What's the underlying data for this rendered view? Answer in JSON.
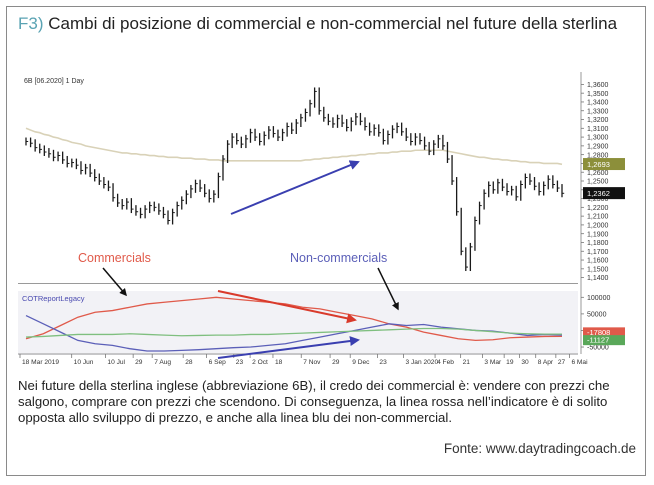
{
  "figure": {
    "label": "F3)",
    "title": "Cambi di posizione di commercial e non-commercial nel future della sterlina",
    "caption": "Nei future della sterlina inglese (abbreviazione 6B), il credo dei commercial è: vendere con prezzi che salgono, comprare con prezzi che scendono. Di conseguenza, la linea rossa nell’indicatore è di solito opposta allo sviluppo di prezzo, e anche alla linea blu dei non-commercial.",
    "source": "Fonte: www.daytradingcoach.de"
  },
  "colors": {
    "price": "#1a1a1a",
    "moving_average": "#d9d2b8",
    "commercials": "#e05a4a",
    "non_commercials": "#5b5fb8",
    "green_line": "#7fbf7f",
    "arrow_blue": "#3a3fb0",
    "arrow_red": "#d93a2b",
    "ma_badge": "#8c8f3a",
    "price_badge": "#111111",
    "net_badge_red": "#e05a4a",
    "net_badge_green": "#5aa85a"
  },
  "chart_data": {
    "type": "line",
    "instrument_label": "6B [06.2020] 1 Day",
    "indicator_label": "COTReportLegacy",
    "annotations": {
      "commercials": "Commercials",
      "non_commercials": "Non-commercials"
    },
    "x_tick_labels": [
      "18 Mar 2019",
      "10 Jun",
      "10 Jul",
      "29",
      "7 Aug",
      "28",
      "6 Sep",
      "23",
      "2 Oct",
      "18",
      "7 Nov",
      "29",
      "9 Dec",
      "23",
      "3 Jan 2020",
      "4 Feb",
      "21",
      "3 Mar",
      "19",
      "30",
      "8 Apr",
      "27",
      "6 Mai"
    ],
    "price_panel": {
      "y_ticks": [
        "1,3600",
        "1,3500",
        "1,3400",
        "1,3300",
        "1,3200",
        "1,3100",
        "1,3000",
        "1,2900",
        "1,2800",
        "1,2700",
        "1,2600",
        "1,2500",
        "1,2400",
        "1,2300",
        "1,2200",
        "1,2100",
        "1,2000",
        "1,1900",
        "1,1800",
        "1,1700",
        "1,1600",
        "1,1500",
        "1,1400"
      ],
      "ylim": [
        1.135,
        1.365
      ],
      "ma_badge_label": "1,2693",
      "price_badge_label": "1,2362",
      "price": [
        1.295,
        1.293,
        1.288,
        1.286,
        1.283,
        1.281,
        1.277,
        1.279,
        1.274,
        1.27,
        1.271,
        1.268,
        1.262,
        1.265,
        1.259,
        1.254,
        1.25,
        1.246,
        1.243,
        1.231,
        1.225,
        1.222,
        1.226,
        1.218,
        1.215,
        1.212,
        1.218,
        1.222,
        1.22,
        1.216,
        1.212,
        1.205,
        1.214,
        1.222,
        1.228,
        1.235,
        1.241,
        1.247,
        1.242,
        1.236,
        1.23,
        1.235,
        1.255,
        1.275,
        1.292,
        1.3,
        1.296,
        1.292,
        1.298,
        1.305,
        1.3,
        1.295,
        1.302,
        1.308,
        1.304,
        1.3,
        1.305,
        1.312,
        1.308,
        1.316,
        1.322,
        1.328,
        1.338,
        1.352,
        1.33,
        1.322,
        1.318,
        1.315,
        1.321,
        1.316,
        1.311,
        1.318,
        1.323,
        1.318,
        1.312,
        1.306,
        1.31,
        1.305,
        1.296,
        1.303,
        1.309,
        1.312,
        1.306,
        1.3,
        1.295,
        1.3,
        1.296,
        1.29,
        1.284,
        1.292,
        1.298,
        1.29,
        1.275,
        1.25,
        1.215,
        1.17,
        1.152,
        1.175,
        1.205,
        1.222,
        1.236,
        1.245,
        1.24,
        1.248,
        1.243,
        1.238,
        1.24,
        1.232,
        1.246,
        1.254,
        1.25,
        1.244,
        1.238,
        1.245,
        1.252,
        1.246,
        1.242,
        1.236
      ],
      "moving_average": [
        1.31,
        1.308,
        1.306,
        1.305,
        1.303,
        1.302,
        1.3,
        1.299,
        1.297,
        1.296,
        1.294,
        1.293,
        1.292,
        1.29,
        1.289,
        1.288,
        1.287,
        1.286,
        1.285,
        1.284,
        1.283,
        1.282,
        1.282,
        1.281,
        1.281,
        1.28,
        1.28,
        1.279,
        1.279,
        1.278,
        1.278,
        1.277,
        1.277,
        1.277,
        1.276,
        1.276,
        1.276,
        1.275,
        1.275,
        1.275,
        1.274,
        1.274,
        1.274,
        1.273,
        1.273,
        1.273,
        1.273,
        1.273,
        1.273,
        1.273,
        1.273,
        1.273,
        1.273,
        1.273,
        1.273,
        1.273,
        1.273,
        1.273,
        1.273,
        1.273,
        1.273,
        1.274,
        1.274,
        1.275,
        1.275,
        1.276,
        1.276,
        1.277,
        1.277,
        1.278,
        1.278,
        1.279,
        1.279,
        1.28,
        1.28,
        1.281,
        1.281,
        1.282,
        1.282,
        1.282,
        1.283,
        1.283,
        1.284,
        1.284,
        1.284,
        1.285,
        1.285,
        1.285,
        1.285,
        1.285,
        1.285,
        1.285,
        1.284,
        1.283,
        1.282,
        1.281,
        1.28,
        1.279,
        1.278,
        1.277,
        1.277,
        1.276,
        1.275,
        1.275,
        1.274,
        1.274,
        1.273,
        1.273,
        1.272,
        1.272,
        1.271,
        1.271,
        1.271,
        1.27,
        1.27,
        1.27,
        1.27,
        1.269
      ]
    },
    "indicator_panel": {
      "y_ticks": [
        "100000",
        "50000",
        "0",
        "-50000"
      ],
      "ylim": [
        -65000,
        110000
      ],
      "net_badge_labels": [
        "-17808",
        "-11127"
      ],
      "series": [
        {
          "values": [
            -25000,
            -10000,
            15000,
            40000,
            55000,
            60000,
            70000,
            80000,
            85000,
            90000,
            95000,
            100000,
            95000,
            90000,
            85000,
            80000,
            70000,
            65000,
            55000,
            45000,
            35000,
            20000,
            10000,
            -5000,
            -15000,
            -25000,
            -30000,
            -28000,
            -22000,
            -20000,
            -18000,
            -17808
          ]
        },
        {
          "values": [
            45000,
            20000,
            -5000,
            -30000,
            -40000,
            -45000,
            -55000,
            -62000,
            -62000,
            -60000,
            -58000,
            -55000,
            -52000,
            -50000,
            -45000,
            -40000,
            -30000,
            -20000,
            -10000,
            0,
            10000,
            20000,
            15000,
            18000,
            10000,
            5000,
            0,
            -2000,
            -8000,
            -15000,
            -12000,
            -14000
          ]
        },
        {
          "values": [
            -20000,
            -18000,
            -15000,
            -12000,
            -12000,
            -12000,
            -10000,
            -12000,
            -14000,
            -16000,
            -15000,
            -14000,
            -14000,
            -12000,
            -12000,
            -10000,
            -8000,
            -6000,
            -4000,
            -2000,
            0,
            2000,
            4000,
            6000,
            6000,
            4000,
            0,
            -4000,
            -8000,
            -10000,
            -11000,
            -11127
          ]
        }
      ]
    }
  }
}
